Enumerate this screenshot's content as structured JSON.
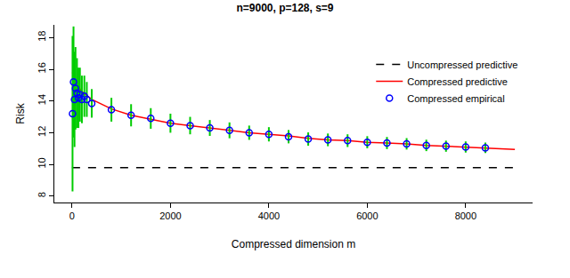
{
  "chart_data": {
    "type": "line",
    "title": "n=9000, p=128, s=9",
    "x_label": "Compressed dimension m",
    "y_label": "Risk",
    "xlim": [
      -360,
      9360
    ],
    "xticks": [
      0,
      2000,
      4000,
      6000,
      8000
    ],
    "ylim": [
      7.6,
      18.8
    ],
    "yticks": [
      8,
      10,
      12,
      14,
      16,
      18
    ],
    "grid": false,
    "legend": "top-right",
    "series": [
      {
        "name": "Uncompressed predictive",
        "type": "line",
        "line_style": "dashed",
        "color": "#000000",
        "x": [
          0,
          9000
        ],
        "values": [
          9.8,
          9.8
        ]
      },
      {
        "name": "Compressed predictive",
        "type": "line",
        "line_style": "solid",
        "color": "#ff0000",
        "x": [
          10,
          50,
          100,
          200,
          400,
          800,
          1200,
          1600,
          2000,
          2400,
          2800,
          3200,
          3600,
          4000,
          4400,
          4800,
          5200,
          5600,
          6000,
          6400,
          6800,
          7200,
          7600,
          8000,
          8400,
          9000
        ],
        "values": [
          15.8,
          15.3,
          15.0,
          14.6,
          14.1,
          13.5,
          13.1,
          12.85,
          12.6,
          12.45,
          12.3,
          12.15,
          12.0,
          11.9,
          11.8,
          11.65,
          11.55,
          11.5,
          11.4,
          11.35,
          11.3,
          11.2,
          11.15,
          11.1,
          11.05,
          10.95
        ]
      },
      {
        "name": "Compressed empirical",
        "type": "scatter",
        "marker": "open circle",
        "color": "#0000ff",
        "x": [
          10,
          30,
          50,
          70,
          100,
          130,
          160,
          200,
          250,
          300,
          400,
          800,
          1200,
          1600,
          2000,
          2400,
          2800,
          3200,
          3600,
          4000,
          4400,
          4800,
          5200,
          5600,
          6000,
          6400,
          6800,
          7200,
          7600,
          8000,
          8400
        ],
        "values": [
          13.2,
          15.2,
          14.1,
          14.8,
          14.5,
          14.2,
          14.4,
          14.1,
          14.3,
          14.1,
          13.85,
          13.45,
          13.1,
          12.9,
          12.6,
          12.45,
          12.3,
          12.15,
          12.0,
          11.9,
          11.75,
          11.6,
          11.55,
          11.5,
          11.4,
          11.35,
          11.3,
          11.2,
          11.15,
          11.1,
          11.05
        ],
        "error": [
          4.9,
          3.5,
          3.0,
          2.6,
          2.2,
          1.9,
          1.7,
          1.5,
          1.3,
          1.1,
          0.9,
          0.75,
          0.7,
          0.65,
          0.6,
          0.55,
          0.5,
          0.5,
          0.45,
          0.45,
          0.42,
          0.42,
          0.4,
          0.4,
          0.38,
          0.38,
          0.36,
          0.36,
          0.35,
          0.35,
          0.33
        ]
      }
    ]
  }
}
